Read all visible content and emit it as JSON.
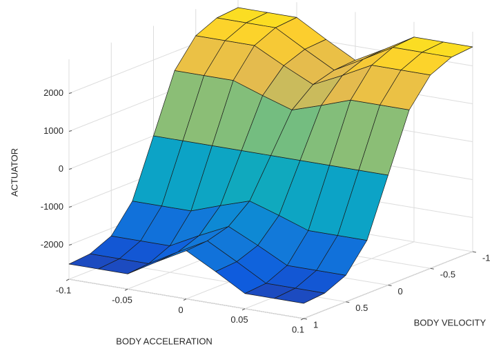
{
  "chart_data": {
    "type": "surface",
    "colormap": "parula",
    "xlabel": "BODY ACCELERATION",
    "ylabel": "BODY VELOCITY",
    "zlabel": "ACTUATOR",
    "x": [
      -0.1,
      -0.075,
      -0.05,
      -0.025,
      0,
      0.025,
      0.05,
      0.075,
      0.1
    ],
    "y": [
      -1,
      -0.75,
      -0.5,
      -0.25,
      0,
      0.25,
      0.5,
      0.75,
      1
    ],
    "z": [
      [
        2500,
        2500,
        2500,
        2050,
        1630,
        2050,
        2500,
        2500,
        2500
      ],
      [
        2450,
        2450,
        2450,
        2010,
        1590,
        2010,
        2450,
        2450,
        2450
      ],
      [
        2200,
        2200,
        2200,
        1800,
        1430,
        1800,
        2200,
        2200,
        2200
      ],
      [
        1500,
        1500,
        1500,
        1230,
        980,
        1230,
        1500,
        1500,
        1500
      ],
      [
        0,
        0,
        0,
        0,
        0,
        0,
        0,
        0,
        0
      ],
      [
        -1500,
        -1500,
        -1500,
        -1230,
        -980,
        -1230,
        -1500,
        -1500,
        -1500
      ],
      [
        -2200,
        -2200,
        -2200,
        -1800,
        -1430,
        -1800,
        -2200,
        -2200,
        -2200
      ],
      [
        -2450,
        -2450,
        -2450,
        -2010,
        -1590,
        -2010,
        -2450,
        -2450,
        -2450
      ],
      [
        -2500,
        -2500,
        -2500,
        -2050,
        -1630,
        -2050,
        -2500,
        -2500,
        -2500
      ]
    ],
    "xlim": [
      -0.1,
      0.1
    ],
    "ylim": [
      -1,
      1
    ],
    "zlim": [
      -2900,
      2900
    ],
    "xticks": [
      -0.1,
      -0.05,
      0,
      0.05,
      0.1
    ],
    "yticks": [
      -1,
      -0.5,
      0,
      0.5,
      1
    ],
    "zticks": [
      -2000,
      -1000,
      0,
      1000,
      2000
    ],
    "grid": true
  }
}
